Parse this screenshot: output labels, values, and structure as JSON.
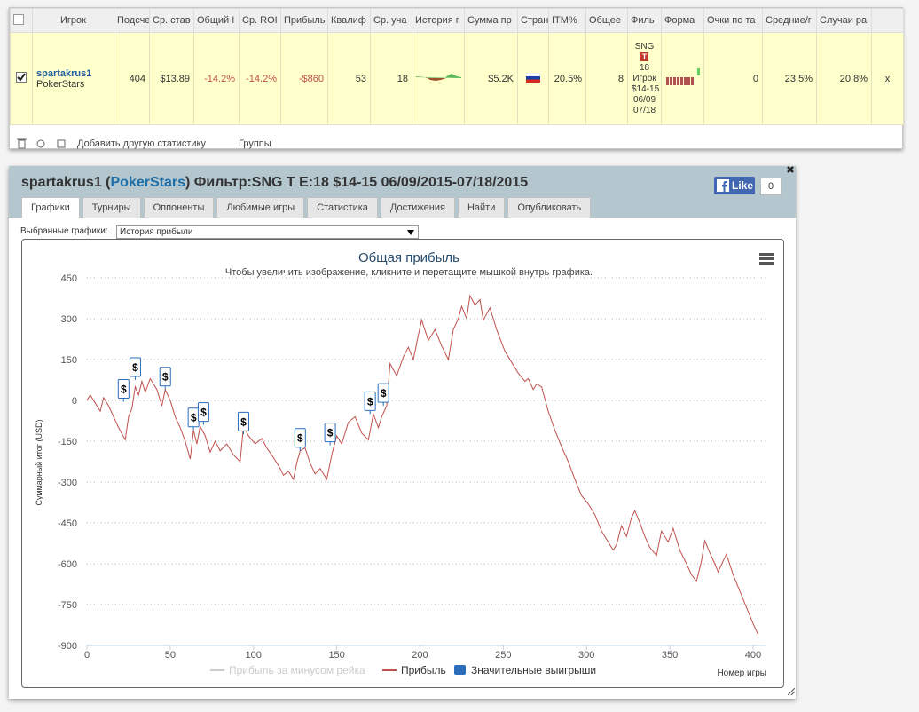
{
  "table": {
    "headers": [
      "Игрок",
      "Подсче",
      "Ср. став",
      "Общий I",
      "Ср. ROI",
      "Прибыль",
      "Квалиф",
      "Ср. уча",
      "История г",
      "Сумма пр",
      "Стран",
      "ITM%",
      "Общее",
      "Филь",
      "Форма",
      "Очки по та",
      "Средние/г",
      "Случаи ра"
    ],
    "row": {
      "player": "spartakrus1",
      "site": "PokerStars",
      "count": "404",
      "avg_stake": "$13.89",
      "total_roi": "-14.2%",
      "avg_roi": "-14.2%",
      "profit": "-$860",
      "qualified": "53",
      "avg_entrants": "18",
      "total_sum": "$5.2K",
      "itm": "20.5%",
      "total": "8",
      "filter": [
        "SNG",
        "T",
        "18",
        "Игрок",
        "$14-15",
        "06/09",
        "07/18"
      ],
      "points": "0",
      "avg_per": "23.5%",
      "cases": "20.8%",
      "remove": "x"
    }
  },
  "toolbar": {
    "add_stat": "Добавить другую статистику",
    "groups": "Группы"
  },
  "panel": {
    "title": [
      "spartakrus1 (",
      "PokerStars",
      ") Фильтр:SNG T E:18 $14-15 06/09/2015-07/18/2015"
    ],
    "like": "Like",
    "like_count": "0",
    "tabs": [
      "Графики",
      "Турниры",
      "Оппоненты",
      "Любимые игры",
      "Статистика",
      "Достижения",
      "Найти",
      "Опубликовать"
    ],
    "selector_label": "Выбранные графики:",
    "selector_value": "История прибыли"
  },
  "chart_data": {
    "type": "line",
    "title": "Общая прибыль",
    "subtitle": "Чтобы увеличить изображение, кликните и перетащите мышкой внутрь графика.",
    "x_label": "Номер игры",
    "y_label": "Суммарный итог (USD)",
    "xlim": [
      0,
      408
    ],
    "xticks": [
      0,
      50,
      100,
      150,
      200,
      250,
      300,
      350,
      400
    ],
    "ylim": [
      -900,
      450
    ],
    "yticks": [
      -900,
      -750,
      -600,
      -450,
      -300,
      -150,
      0,
      150,
      300,
      450
    ],
    "grid": true,
    "x": [
      0,
      2,
      5,
      8,
      10,
      13,
      16,
      19,
      23,
      25,
      27,
      29,
      31,
      33,
      35,
      38,
      42,
      45,
      47,
      50,
      53,
      56,
      59,
      62,
      64,
      66,
      68,
      71,
      74,
      77,
      80,
      84,
      88,
      92,
      94,
      97,
      101,
      105,
      108,
      112,
      116,
      118,
      121,
      124,
      126,
      128,
      131,
      134,
      137,
      140,
      144,
      147,
      150,
      153,
      157,
      161,
      165,
      169,
      172,
      175,
      177,
      180,
      182,
      186,
      190,
      193,
      196,
      199,
      201,
      205,
      209,
      213,
      217,
      220,
      223,
      225,
      228,
      230,
      233,
      236,
      238,
      242,
      246,
      251,
      255,
      259,
      263,
      265,
      268,
      270,
      273,
      277,
      281,
      285,
      289,
      293,
      297,
      301,
      305,
      309,
      313,
      316,
      318,
      321,
      324,
      327,
      329,
      332,
      335,
      338,
      342,
      345,
      349,
      352,
      356,
      360,
      363,
      366,
      369,
      371,
      374,
      377,
      379,
      382,
      384,
      388,
      392,
      396,
      400,
      403
    ],
    "series": [
      {
        "name": "Прибыль за минусом рейка",
        "color": "#cccccc",
        "visible": false
      },
      {
        "name": "Прибыль",
        "color": "#c0504d",
        "values": [
          0,
          20,
          -10,
          -40,
          10,
          -20,
          -60,
          -100,
          -145,
          -60,
          -30,
          50,
          20,
          70,
          30,
          80,
          40,
          -20,
          40,
          0,
          -60,
          -100,
          -150,
          -215,
          -110,
          -160,
          -95,
          -130,
          -190,
          -150,
          -185,
          -160,
          -200,
          -225,
          -95,
          -130,
          -160,
          -140,
          -175,
          -210,
          -250,
          -275,
          -260,
          -290,
          -230,
          -185,
          -175,
          -230,
          -270,
          -250,
          -290,
          -200,
          -130,
          -160,
          -80,
          -60,
          -120,
          -145,
          -50,
          -100,
          -60,
          -20,
          135,
          90,
          160,
          195,
          150,
          240,
          295,
          220,
          260,
          200,
          150,
          260,
          300,
          345,
          300,
          385,
          350,
          370,
          295,
          340,
          260,
          180,
          140,
          100,
          70,
          80,
          40,
          60,
          50,
          -40,
          -110,
          -170,
          -225,
          -290,
          -350,
          -380,
          -420,
          -480,
          -520,
          -550,
          -530,
          -460,
          -500,
          -430,
          -405,
          -450,
          -500,
          -540,
          -570,
          -480,
          -520,
          -470,
          -550,
          -600,
          -640,
          -665,
          -590,
          -515,
          -560,
          -600,
          -630,
          -590,
          -565,
          -640,
          -700,
          -760,
          -820,
          -860
        ]
      },
      {
        "name": "Значительные выигрыши",
        "color": "#2a6ebb",
        "symbol": "$",
        "x": [
          22,
          29,
          47,
          64,
          70,
          94,
          128,
          146,
          170,
          178
        ],
        "values": [
          -5,
          75,
          40,
          -110,
          -90,
          -125,
          -185,
          -165,
          -50,
          -20
        ]
      }
    ]
  }
}
